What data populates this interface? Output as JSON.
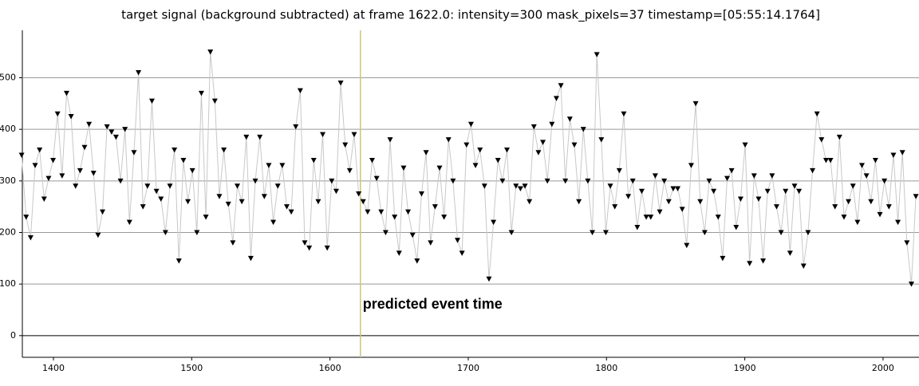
{
  "chart_data": {
    "type": "line",
    "title": "target signal (background subtracted) at frame 1622.0: intensity=300 mask_pixels=37 timestamp=[05:55:14.1764]",
    "annotation": "predicted event time",
    "event_x": 1622,
    "event_color": "#c8c87a",
    "line_color": "#c8c8c8",
    "marker_color": "#000000",
    "marker": "triangle-down",
    "grid": true,
    "xlim": [
      1377.5,
      2026
    ],
    "ylim": [
      -42,
      592
    ],
    "xticks": [
      1400,
      1500,
      1600,
      1700,
      1800,
      1900,
      2000
    ],
    "yticks": [
      0,
      100,
      200,
      300,
      400,
      500
    ],
    "x": [
      1377,
      1380.25,
      1383.5,
      1386.75,
      1390,
      1393.25,
      1396.5,
      1399.75,
      1403,
      1406.25,
      1409.5,
      1412.75,
      1416,
      1419.25,
      1422.5,
      1425.75,
      1429,
      1432.25,
      1435.5,
      1438.75,
      1442,
      1445.25,
      1448.5,
      1451.75,
      1455,
      1458.25,
      1461.5,
      1464.75,
      1468,
      1471.25,
      1474.5,
      1477.75,
      1481,
      1484.25,
      1487.5,
      1490.75,
      1494,
      1497.25,
      1500.5,
      1503.75,
      1507,
      1510.25,
      1513.5,
      1516.75,
      1520,
      1523.25,
      1526.5,
      1529.75,
      1533,
      1536.25,
      1539.5,
      1542.75,
      1546,
      1549.25,
      1552.5,
      1555.75,
      1559,
      1562.25,
      1565.5,
      1568.75,
      1572,
      1575.25,
      1578.5,
      1581.75,
      1585,
      1588.25,
      1591.5,
      1594.75,
      1598,
      1601.25,
      1604.5,
      1607.75,
      1611,
      1614.25,
      1617.5,
      1620.75,
      1624,
      1627.25,
      1630.5,
      1633.75,
      1637,
      1640.25,
      1643.5,
      1646.75,
      1650,
      1653.25,
      1656.5,
      1659.75,
      1663,
      1666.25,
      1669.5,
      1672.75,
      1676,
      1679.25,
      1682.5,
      1685.75,
      1689,
      1692.25,
      1695.5,
      1698.75,
      1702,
      1705.25,
      1708.5,
      1711.75,
      1715,
      1718.25,
      1721.5,
      1724.75,
      1728,
      1731.25,
      1734.5,
      1737.75,
      1741,
      1744.25,
      1747.5,
      1750.75,
      1754,
      1757.25,
      1760.5,
      1763.75,
      1767,
      1770.25,
      1773.5,
      1776.75,
      1780,
      1783.25,
      1786.5,
      1789.75,
      1793,
      1796.25,
      1799.5,
      1802.75,
      1806,
      1809.25,
      1812.5,
      1815.75,
      1819,
      1822.25,
      1825.5,
      1828.75,
      1832,
      1835.25,
      1838.5,
      1841.75,
      1845,
      1848.25,
      1851.5,
      1854.75,
      1858,
      1861.25,
      1864.5,
      1867.75,
      1871,
      1874.25,
      1877.5,
      1880.75,
      1884,
      1887.25,
      1890.5,
      1893.75,
      1897,
      1900.25,
      1903.5,
      1906.75,
      1910,
      1913.25,
      1916.5,
      1919.75,
      1923,
      1926.25,
      1929.5,
      1932.75,
      1936,
      1939.25,
      1942.5,
      1945.75,
      1949,
      1952.25,
      1955.5,
      1958.75,
      1962,
      1965.25,
      1968.5,
      1971.75,
      1975,
      1978.25,
      1981.5,
      1984.75,
      1988,
      1991.25,
      1994.5,
      1997.75,
      2001,
      2004.25,
      2007.5,
      2010.75,
      2014,
      2017.25,
      2020.5,
      2023.75
    ],
    "values": [
      350,
      230,
      190,
      330,
      360,
      265,
      305,
      340,
      430,
      310,
      470,
      425,
      290,
      320,
      365,
      410,
      315,
      195,
      240,
      405,
      395,
      385,
      300,
      400,
      220,
      355,
      510,
      250,
      290,
      455,
      280,
      265,
      200,
      290,
      360,
      145,
      340,
      260,
      320,
      200,
      470,
      230,
      550,
      455,
      270,
      360,
      255,
      180,
      290,
      260,
      385,
      150,
      300,
      385,
      270,
      330,
      220,
      290,
      330,
      250,
      240,
      405,
      475,
      180,
      170,
      340,
      260,
      390,
      170,
      300,
      280,
      490,
      370,
      320,
      390,
      275,
      260,
      240,
      340,
      305,
      240,
      200,
      380,
      230,
      160,
      325,
      240,
      195,
      145,
      275,
      355,
      180,
      250,
      325,
      230,
      380,
      300,
      185,
      160,
      370,
      410,
      330,
      360,
      290,
      110,
      220,
      340,
      300,
      360,
      200,
      290,
      285,
      290,
      260,
      405,
      355,
      375,
      300,
      410,
      460,
      485,
      300,
      420,
      370,
      260,
      400,
      300,
      200,
      545,
      380,
      200,
      290,
      250,
      320,
      430,
      270,
      300,
      210,
      280,
      230,
      230,
      310,
      240,
      300,
      260,
      285,
      285,
      245,
      175,
      330,
      450,
      260,
      200,
      300,
      280,
      230,
      150,
      305,
      320,
      210,
      265,
      370,
      140,
      310,
      265,
      145,
      280,
      310,
      250,
      200,
      280,
      160,
      290,
      280,
      135,
      200,
      320,
      430,
      380,
      340,
      340,
      250,
      385,
      230,
      260,
      290,
      220,
      330,
      310,
      260,
      340,
      235,
      300,
      250,
      350,
      220,
      355,
      180,
      100,
      270
    ]
  }
}
